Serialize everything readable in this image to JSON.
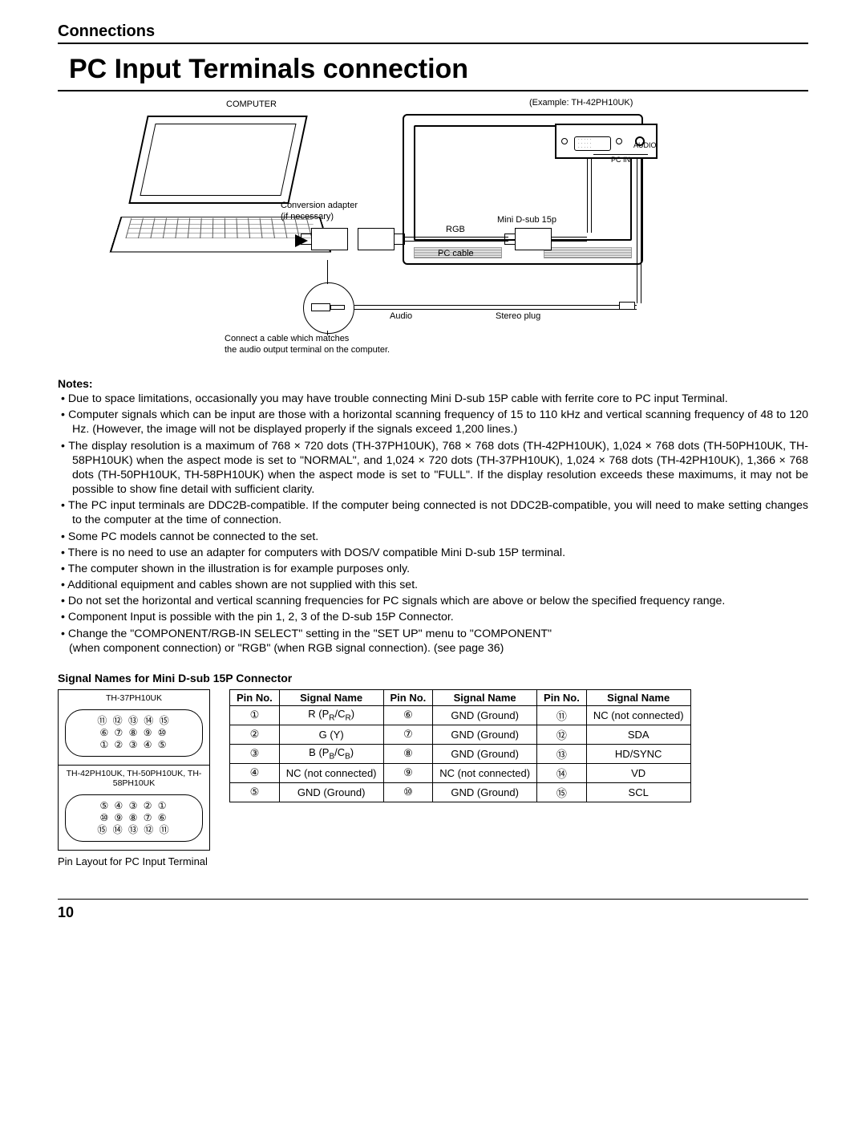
{
  "section_header": "Connections",
  "page_title": "PC Input Terminals connection",
  "diagram": {
    "computer_label": "COMPUTER",
    "example_label": "(Example: TH-42PH10UK)",
    "audio_port": "AUDIO",
    "pc_in": "PC IN",
    "conversion_adapter_l1": "Conversion adapter",
    "conversion_adapter_l2": "(if necessary)",
    "rgb": "RGB",
    "pc_cable": "PC cable",
    "mini_dsub": "Mini D-sub 15p",
    "audio_label": "Audio",
    "stereo_plug": "Stereo plug",
    "audio_note_l1": "Connect a cable which matches",
    "audio_note_l2": "the audio output terminal on the computer."
  },
  "notes_heading": "Notes:",
  "notes": [
    "Due to space limitations, occasionally you may have trouble connecting Mini D-sub 15P cable with ferrite core to PC input Terminal.",
    "Computer signals which can be input are those with a horizontal scanning frequency of 15 to 110 kHz and vertical scanning frequency of 48 to 120 Hz. (However, the image will not be displayed properly if the signals exceed 1,200 lines.)",
    "The display resolution is a maximum of 768 × 720 dots (TH-37PH10UK), 768 × 768 dots (TH-42PH10UK),  1,024 × 768 dots (TH-50PH10UK, TH-58PH10UK) when the aspect mode is set to \"NORMAL\", and 1,024 × 720 dots (TH-37PH10UK), 1,024 × 768 dots (TH-42PH10UK), 1,366 × 768 dots (TH-50PH10UK, TH-58PH10UK) when the aspect mode is set to \"FULL\". If the display resolution exceeds these maximums, it may not be possible to show fine detail with sufficient clarity.",
    "The PC input terminals are DDC2B-compatible. If the computer being connected is not DDC2B-compatible, you will need to make setting changes to the computer at the time of connection.",
    "Some PC models cannot be connected to the set.",
    "There is no need to use an adapter for computers with DOS/V compatible Mini D-sub 15P terminal.",
    "The computer shown in the illustration is for example purposes only.",
    "Additional equipment and cables shown are not supplied with this set.",
    "Do not set the horizontal and vertical scanning frequencies for PC signals which are above or below the specified frequency range.",
    "Component Input is possible with the pin 1, 2, 3 of the D-sub 15P Connector.",
    "Change the \"COMPONENT/RGB-IN SELECT\" setting in the \"SET UP\" menu to \"COMPONENT\""
  ],
  "note_tail": "(when component connection) or \"RGB\" (when RGB signal connection). (see page 36)",
  "sig_heading": "Signal Names for Mini D-sub 15P Connector",
  "pin_diagram": {
    "model_top": "TH-37PH10UK",
    "top_rows": [
      "⑪ ⑫ ⑬ ⑭ ⑮",
      "⑥ ⑦ ⑧ ⑨ ⑩",
      "① ② ③ ④ ⑤"
    ],
    "model_bottom": "TH-42PH10UK, TH-50PH10UK, TH-58PH10UK",
    "bottom_rows": [
      "⑤ ④ ③ ② ①",
      "⑩ ⑨ ⑧ ⑦ ⑥",
      "⑮ ⑭ ⑬ ⑫ ⑪"
    ],
    "caption": "Pin Layout for PC Input Terminal"
  },
  "table": {
    "headers": [
      "Pin No.",
      "Signal Name",
      "Pin No.",
      "Signal Name",
      "Pin No.",
      "Signal Name"
    ],
    "rows": [
      [
        "①",
        "R (P<R>/C<R>)",
        "⑥",
        "GND (Ground)",
        "⑪",
        "NC (not connected)"
      ],
      [
        "②",
        "G (Y)",
        "⑦",
        "GND (Ground)",
        "⑫",
        "SDA"
      ],
      [
        "③",
        "B (P<B>/C<B>)",
        "⑧",
        "GND (Ground)",
        "⑬",
        "HD/SYNC"
      ],
      [
        "④",
        "NC (not connected)",
        "⑨",
        "NC (not connected)",
        "⑭",
        "VD"
      ],
      [
        "⑤",
        "GND (Ground)",
        "⑩",
        "GND (Ground)",
        "⑮",
        "SCL"
      ]
    ]
  },
  "page_number": "10"
}
